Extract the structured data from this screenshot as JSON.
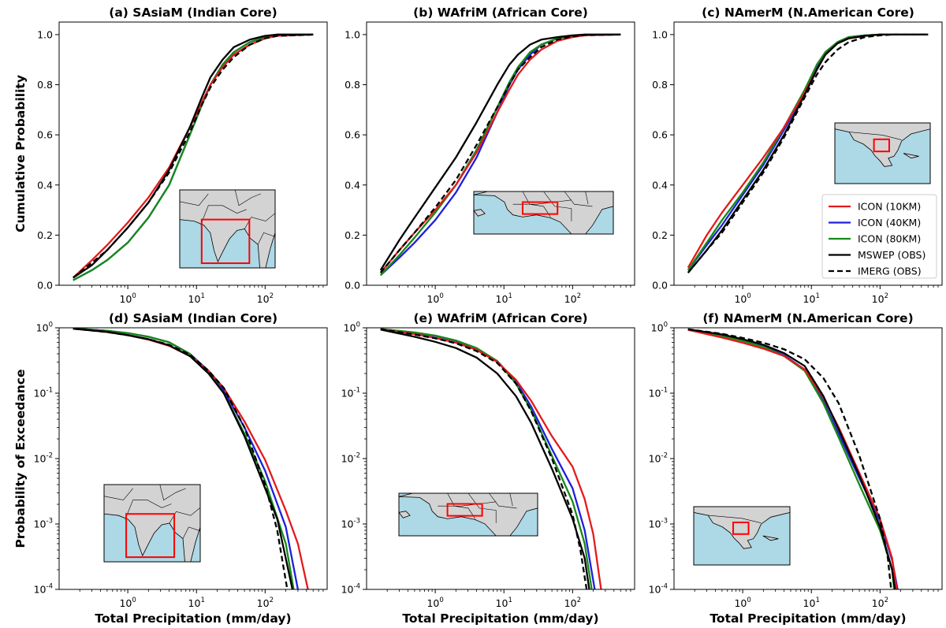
{
  "chart_data": [
    {
      "id": "a",
      "type": "line",
      "title": "(a) SAsiaM (Indian Core)",
      "ylabel": "Cumulative Probability",
      "xlabel": "",
      "xscale": "log",
      "yscale": "linear",
      "xlim": [
        0.1,
        800
      ],
      "ylim": [
        0,
        1.05
      ],
      "yticks": [
        0.0,
        0.2,
        0.4,
        0.6,
        0.8,
        1.0
      ],
      "yticklabels": [
        "0.0",
        "0.2",
        "0.4",
        "0.6",
        "0.8",
        "1.0"
      ],
      "xticks": [
        1,
        10,
        100
      ],
      "xticklabels": [
        "10^0",
        "10^1",
        "10^2"
      ],
      "inset": "India",
      "inset_position": "lower-right",
      "x": [
        0.16,
        0.3,
        0.5,
        1,
        2,
        4,
        8,
        12,
        16,
        24,
        35,
        60,
        100,
        150,
        500
      ],
      "series": [
        {
          "name": "ICON (10KM)",
          "values": [
            0.03,
            0.1,
            0.16,
            0.25,
            0.35,
            0.47,
            0.63,
            0.73,
            0.8,
            0.87,
            0.92,
            0.96,
            0.985,
            0.995,
            1.0
          ]
        },
        {
          "name": "ICON (40KM)",
          "values": [
            0.02,
            0.06,
            0.1,
            0.17,
            0.27,
            0.4,
            0.6,
            0.72,
            0.8,
            0.88,
            0.93,
            0.97,
            0.99,
            1.0,
            1.0
          ]
        },
        {
          "name": "ICON (80KM)",
          "values": [
            0.02,
            0.06,
            0.1,
            0.17,
            0.27,
            0.4,
            0.6,
            0.72,
            0.8,
            0.88,
            0.93,
            0.97,
            0.99,
            1.0,
            1.0
          ]
        },
        {
          "name": "MSWEP (OBS)",
          "values": [
            0.03,
            0.08,
            0.14,
            0.23,
            0.33,
            0.46,
            0.63,
            0.75,
            0.83,
            0.9,
            0.95,
            0.98,
            0.995,
            1.0,
            1.0
          ]
        },
        {
          "name": "IMERG (OBS)",
          "values": [
            0.03,
            0.09,
            0.14,
            0.23,
            0.33,
            0.45,
            0.61,
            0.72,
            0.79,
            0.86,
            0.91,
            0.96,
            0.985,
            0.995,
            1.0
          ]
        }
      ]
    },
    {
      "id": "b",
      "type": "line",
      "title": "(b) WAfriM (African Core)",
      "ylabel": "",
      "xlabel": "",
      "xscale": "log",
      "yscale": "linear",
      "xlim": [
        0.1,
        800
      ],
      "ylim": [
        0,
        1.05
      ],
      "yticks": [
        0.0,
        0.2,
        0.4,
        0.6,
        0.8,
        1.0
      ],
      "yticklabels": [
        "0.0",
        "0.2",
        "0.4",
        "0.6",
        "0.8",
        "1.0"
      ],
      "xticks": [
        1,
        10,
        100
      ],
      "xticklabels": [
        "10^0",
        "10^1",
        "10^2"
      ],
      "inset": "West Africa",
      "inset_position": "lower-right",
      "x": [
        0.16,
        0.3,
        0.5,
        1,
        2,
        4,
        8,
        12,
        16,
        24,
        35,
        60,
        100,
        150,
        500
      ],
      "series": [
        {
          "name": "ICON (10KM)",
          "values": [
            0.05,
            0.14,
            0.21,
            0.3,
            0.4,
            0.53,
            0.69,
            0.78,
            0.84,
            0.9,
            0.94,
            0.975,
            0.99,
            0.997,
            1.0
          ]
        },
        {
          "name": "ICON (40KM)",
          "values": [
            0.04,
            0.11,
            0.17,
            0.26,
            0.37,
            0.51,
            0.69,
            0.8,
            0.86,
            0.92,
            0.96,
            0.985,
            0.995,
            1.0,
            1.0
          ]
        },
        {
          "name": "ICON (80KM)",
          "values": [
            0.04,
            0.12,
            0.19,
            0.29,
            0.4,
            0.54,
            0.71,
            0.81,
            0.87,
            0.93,
            0.96,
            0.985,
            0.995,
            1.0,
            1.0
          ]
        },
        {
          "name": "MSWEP (OBS)",
          "values": [
            0.06,
            0.18,
            0.27,
            0.39,
            0.51,
            0.65,
            0.8,
            0.88,
            0.92,
            0.96,
            0.98,
            0.99,
            0.997,
            1.0,
            1.0
          ]
        },
        {
          "name": "IMERG (OBS)",
          "values": [
            0.05,
            0.14,
            0.21,
            0.31,
            0.42,
            0.56,
            0.71,
            0.8,
            0.86,
            0.91,
            0.95,
            0.98,
            0.993,
            0.998,
            1.0
          ]
        }
      ]
    },
    {
      "id": "c",
      "type": "line",
      "title": "(c) NAmerM (N.American Core)",
      "ylabel": "",
      "xlabel": "",
      "xscale": "log",
      "yscale": "linear",
      "xlim": [
        0.1,
        800
      ],
      "ylim": [
        0,
        1.05
      ],
      "yticks": [
        0.0,
        0.2,
        0.4,
        0.6,
        0.8,
        1.0
      ],
      "yticklabels": [
        "0.0",
        "0.2",
        "0.4",
        "0.6",
        "0.8",
        "1.0"
      ],
      "xticks": [
        1,
        10,
        100
      ],
      "xticklabels": [
        "10^0",
        "10^1",
        "10^2"
      ],
      "inset": "Mexico",
      "inset_position": "right",
      "legend": "lower-right",
      "x": [
        0.16,
        0.3,
        0.5,
        1,
        2,
        4,
        8,
        12,
        16,
        24,
        35,
        60,
        100,
        150,
        500
      ],
      "series": [
        {
          "name": "ICON (10KM)",
          "values": [
            0.07,
            0.2,
            0.29,
            0.4,
            0.51,
            0.63,
            0.77,
            0.86,
            0.92,
            0.965,
            0.985,
            0.995,
            1.0,
            1.0,
            1.0
          ]
        },
        {
          "name": "ICON (40KM)",
          "values": [
            0.06,
            0.16,
            0.24,
            0.36,
            0.48,
            0.62,
            0.77,
            0.87,
            0.93,
            0.97,
            0.99,
            0.997,
            1.0,
            1.0,
            1.0
          ]
        },
        {
          "name": "ICON (80KM)",
          "values": [
            0.06,
            0.17,
            0.26,
            0.37,
            0.49,
            0.63,
            0.78,
            0.88,
            0.93,
            0.97,
            0.99,
            0.997,
            1.0,
            1.0,
            1.0
          ]
        },
        {
          "name": "MSWEP (OBS)",
          "values": [
            0.05,
            0.14,
            0.22,
            0.34,
            0.46,
            0.6,
            0.76,
            0.86,
            0.92,
            0.965,
            0.985,
            0.995,
            1.0,
            1.0,
            1.0
          ]
        },
        {
          "name": "IMERG (OBS)",
          "values": [
            0.05,
            0.14,
            0.21,
            0.33,
            0.45,
            0.59,
            0.75,
            0.84,
            0.89,
            0.94,
            0.97,
            0.99,
            0.997,
            1.0,
            1.0
          ]
        }
      ]
    },
    {
      "id": "d",
      "type": "line",
      "title": "(d) SAsiaM (Indian Core)",
      "ylabel": "Probability of Exceedance",
      "xlabel": "Total Precipitation (mm/day)",
      "xscale": "log",
      "yscale": "log",
      "xlim": [
        0.1,
        800
      ],
      "ylim": [
        0.0001,
        1
      ],
      "yticks": [
        0.0001,
        0.001,
        0.01,
        0.1,
        1
      ],
      "yticklabels": [
        "10^-4",
        "10^-3",
        "10^-2",
        "10^-1",
        "10^0"
      ],
      "xticks": [
        1,
        10,
        100
      ],
      "xticklabels": [
        "10^0",
        "10^1",
        "10^2"
      ],
      "inset": "India",
      "inset_position": "lower-left",
      "series": [
        {
          "name": "ICON (10KM)",
          "x": [
            0.16,
            0.5,
            1,
            2,
            4,
            8,
            15,
            25,
            50,
            100,
            200,
            300,
            420
          ],
          "values": [
            0.97,
            0.86,
            0.77,
            0.66,
            0.53,
            0.37,
            0.22,
            0.12,
            0.037,
            0.0095,
            0.0016,
            0.0005,
            0.0001
          ]
        },
        {
          "name": "ICON (40KM)",
          "x": [
            0.16,
            0.5,
            1,
            2,
            4,
            8,
            15,
            25,
            50,
            100,
            200,
            300
          ],
          "values": [
            0.98,
            0.9,
            0.83,
            0.73,
            0.6,
            0.4,
            0.22,
            0.11,
            0.03,
            0.0065,
            0.0009,
            0.0001
          ]
        },
        {
          "name": "ICON (80KM)",
          "x": [
            0.16,
            0.5,
            1,
            2,
            4,
            8,
            15,
            25,
            50,
            100,
            200,
            260
          ],
          "values": [
            0.98,
            0.9,
            0.83,
            0.73,
            0.6,
            0.4,
            0.21,
            0.1,
            0.024,
            0.0045,
            0.0005,
            0.0001
          ]
        },
        {
          "name": "MSWEP (OBS)",
          "x": [
            0.16,
            0.5,
            1,
            2,
            4,
            8,
            15,
            25,
            50,
            100,
            150,
            250
          ],
          "values": [
            0.97,
            0.87,
            0.77,
            0.67,
            0.54,
            0.37,
            0.2,
            0.1,
            0.022,
            0.0035,
            0.0012,
            0.0001
          ]
        },
        {
          "name": "IMERG (OBS)",
          "x": [
            0.16,
            0.5,
            1,
            2,
            4,
            8,
            15,
            25,
            50,
            100,
            150,
            210
          ],
          "values": [
            0.97,
            0.86,
            0.77,
            0.67,
            0.55,
            0.39,
            0.22,
            0.12,
            0.03,
            0.004,
            0.0008,
            0.0001
          ]
        }
      ]
    },
    {
      "id": "e",
      "type": "line",
      "title": "(e) WAfriM (African Core)",
      "ylabel": "",
      "xlabel": "Total Precipitation (mm/day)",
      "xscale": "log",
      "yscale": "log",
      "xlim": [
        0.1,
        800
      ],
      "ylim": [
        0.0001,
        1
      ],
      "yticks": [
        0.0001,
        0.001,
        0.01,
        0.1,
        1
      ],
      "yticklabels": [
        "10^-4",
        "10^-3",
        "10^-2",
        "10^-1",
        "10^0"
      ],
      "xticks": [
        1,
        10,
        100
      ],
      "xticklabels": [
        "10^0",
        "10^1",
        "10^2"
      ],
      "inset": "West Africa",
      "inset_position": "lower-left",
      "series": [
        {
          "name": "ICON (10KM)",
          "x": [
            0.16,
            0.5,
            1,
            2,
            4,
            8,
            15,
            25,
            50,
            100,
            150,
            200,
            260
          ],
          "values": [
            0.95,
            0.8,
            0.7,
            0.59,
            0.46,
            0.3,
            0.16,
            0.076,
            0.022,
            0.0075,
            0.0024,
            0.0007,
            0.0001
          ]
        },
        {
          "name": "ICON (40KM)",
          "x": [
            0.16,
            0.5,
            1,
            2,
            4,
            8,
            15,
            25,
            50,
            100,
            150,
            210
          ],
          "values": [
            0.96,
            0.84,
            0.75,
            0.63,
            0.48,
            0.31,
            0.15,
            0.062,
            0.014,
            0.0035,
            0.0008,
            0.0001
          ]
        },
        {
          "name": "ICON (80KM)",
          "x": [
            0.16,
            0.5,
            1,
            2,
            4,
            8,
            15,
            25,
            50,
            100,
            150,
            190
          ],
          "values": [
            0.96,
            0.85,
            0.76,
            0.64,
            0.49,
            0.31,
            0.14,
            0.055,
            0.011,
            0.0022,
            0.0005,
            0.0001
          ]
        },
        {
          "name": "MSWEP (OBS)",
          "x": [
            0.16,
            0.5,
            1,
            2,
            4,
            8,
            15,
            25,
            50,
            100,
            150,
            175
          ],
          "values": [
            0.94,
            0.73,
            0.61,
            0.49,
            0.35,
            0.2,
            0.09,
            0.035,
            0.007,
            0.0012,
            0.0003,
            0.0001
          ]
        },
        {
          "name": "IMERG (OBS)",
          "x": [
            0.16,
            0.5,
            1,
            2,
            4,
            8,
            15,
            25,
            50,
            100,
            130,
            160
          ],
          "values": [
            0.95,
            0.79,
            0.69,
            0.58,
            0.44,
            0.29,
            0.14,
            0.053,
            0.01,
            0.0014,
            0.0004,
            0.0001
          ]
        }
      ]
    },
    {
      "id": "f",
      "type": "line",
      "title": "(f) NAmerM (N.American Core)",
      "ylabel": "",
      "xlabel": "Total Precipitation (mm/day)",
      "xscale": "log",
      "yscale": "log",
      "xlim": [
        0.1,
        800
      ],
      "ylim": [
        0.0001,
        1
      ],
      "yticks": [
        0.0001,
        0.001,
        0.01,
        0.1,
        1
      ],
      "yticklabels": [
        "10^-4",
        "10^-3",
        "10^-2",
        "10^-1",
        "10^0"
      ],
      "xticks": [
        1,
        10,
        100
      ],
      "xticklabels": [
        "10^0",
        "10^1",
        "10^2"
      ],
      "inset": "Mexico",
      "inset_position": "lower-left",
      "series": [
        {
          "name": "ICON (10KM)",
          "x": [
            0.16,
            0.5,
            1,
            2,
            4,
            8,
            15,
            25,
            50,
            100,
            150,
            175
          ],
          "values": [
            0.93,
            0.71,
            0.59,
            0.48,
            0.37,
            0.23,
            0.085,
            0.03,
            0.006,
            0.0012,
            0.0003,
            0.0001
          ]
        },
        {
          "name": "ICON (40KM)",
          "x": [
            0.16,
            0.5,
            1,
            2,
            4,
            8,
            15,
            25,
            50,
            100,
            150,
            180
          ],
          "values": [
            0.94,
            0.76,
            0.64,
            0.52,
            0.38,
            0.23,
            0.075,
            0.024,
            0.005,
            0.0011,
            0.00028,
            0.0001
          ]
        },
        {
          "name": "ICON (80KM)",
          "x": [
            0.16,
            0.5,
            1,
            2,
            4,
            8,
            15,
            25,
            50,
            100,
            150,
            160
          ],
          "values": [
            0.94,
            0.75,
            0.63,
            0.51,
            0.37,
            0.22,
            0.07,
            0.021,
            0.004,
            0.0008,
            0.0002,
            0.0001
          ]
        },
        {
          "name": "MSWEP (OBS)",
          "x": [
            0.16,
            0.5,
            1,
            2,
            4,
            8,
            15,
            25,
            50,
            100,
            150,
            165
          ],
          "values": [
            0.95,
            0.79,
            0.67,
            0.55,
            0.41,
            0.26,
            0.09,
            0.028,
            0.0055,
            0.0009,
            0.0002,
            0.0001
          ]
        },
        {
          "name": "IMERG (OBS)",
          "x": [
            0.16,
            0.5,
            1,
            2,
            4,
            8,
            15,
            25,
            50,
            100,
            130,
            145
          ],
          "values": [
            0.95,
            0.81,
            0.7,
            0.59,
            0.47,
            0.33,
            0.17,
            0.07,
            0.011,
            0.0012,
            0.0003,
            0.0001
          ]
        }
      ]
    }
  ],
  "legend": {
    "placement": "lower-right of panel (c)",
    "entries": [
      {
        "label": "ICON (10KM)",
        "color": "#e41a1c",
        "dash": false
      },
      {
        "label": "ICON (40KM)",
        "color": "#1f1fe0",
        "dash": false
      },
      {
        "label": "ICON (80KM)",
        "color": "#168a16",
        "dash": false
      },
      {
        "label": "MSWEP (OBS)",
        "color": "#000000",
        "dash": false
      },
      {
        "label": "IMERG (OBS)",
        "color": "#000000",
        "dash": true
      }
    ]
  },
  "colors": {
    "ICON (10KM)": "#e41a1c",
    "ICON (40KM)": "#1f1fe0",
    "ICON (80KM)": "#168a16",
    "MSWEP (OBS)": "#000000",
    "IMERG (OBS)": "#000000",
    "ocean": "#add8e6",
    "land": "#d3d3d3",
    "region_box": "#ff0000"
  }
}
